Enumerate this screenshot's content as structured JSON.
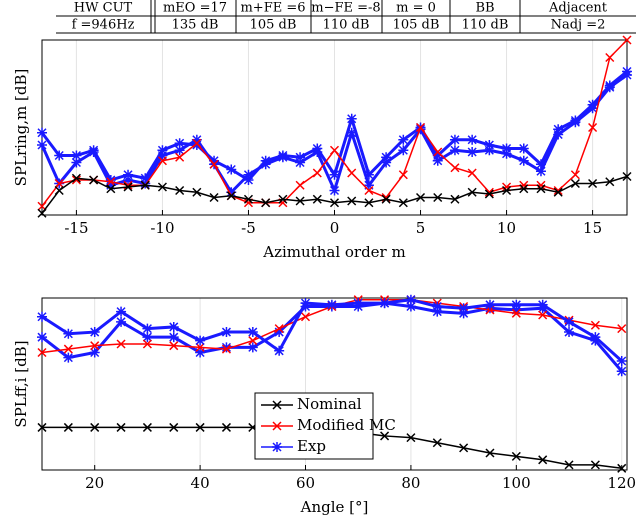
{
  "table": {
    "rows": [
      [
        "HW  CUT",
        "mEO =17",
        "m+FE =6",
        "m−FE =-8",
        "m = 0",
        "BB",
        "Adjacent"
      ],
      [
        "f =946Hz",
        "135 dB",
        "105 dB",
        "110 dB",
        "105 dB",
        "110 dB",
        "Nadj =2"
      ]
    ]
  },
  "chart_data": [
    {
      "type": "line",
      "xlabel": "Azimuthal order m",
      "ylabel": "SPLring,m [dB]",
      "xlim": [
        -17,
        17
      ],
      "ylim": [
        0,
        10
      ],
      "xticks": [
        -15,
        -10,
        -5,
        0,
        5,
        10,
        15
      ],
      "grid": true,
      "x": [
        -17,
        -16,
        -15,
        -14,
        -13,
        -12,
        -11,
        -10,
        -9,
        -8,
        -7,
        -6,
        -5,
        -4,
        -3,
        -2,
        -1,
        0,
        1,
        2,
        3,
        4,
        5,
        6,
        7,
        8,
        9,
        10,
        11,
        12,
        13,
        14,
        15,
        16,
        17
      ],
      "series": [
        {
          "color": "#1a1aff",
          "marker": "star",
          "values": [
            4.7,
            3.4,
            3.4,
            3.7,
            2.0,
            2.3,
            2.1,
            3.7,
            4.1,
            4.0,
            3.1,
            2.6,
            2.0,
            3.1,
            3.4,
            3.3,
            3.8,
            2.3,
            5.5,
            2.3,
            3.3,
            4.3,
            5.0,
            3.4,
            4.3,
            4.3,
            4.0,
            3.8,
            3.8,
            2.9,
            4.9,
            5.4,
            6.3,
            7.4,
            8.2
          ]
        },
        {
          "color": "#1a1aff",
          "marker": "star",
          "values": [
            4.0,
            1.8,
            3.0,
            3.6,
            1.7,
            2.0,
            1.8,
            3.4,
            3.7,
            4.3,
            2.9,
            1.3,
            2.3,
            2.9,
            3.3,
            3.0,
            3.6,
            1.4,
            4.7,
            1.7,
            3.0,
            3.7,
            4.9,
            3.1,
            3.7,
            3.6,
            3.7,
            3.5,
            3.1,
            2.5,
            4.6,
            5.3,
            6.1,
            7.3,
            8.0
          ]
        },
        {
          "color": "#ff0000",
          "marker": "x",
          "values": [
            0.5,
            1.8,
            2.0,
            2.0,
            1.9,
            1.7,
            1.7,
            3.1,
            3.3,
            4.1,
            2.9,
            1.1,
            0.7,
            0.7,
            0.7,
            1.7,
            2.4,
            3.7,
            2.4,
            1.4,
            1.0,
            2.3,
            5.0,
            3.6,
            2.7,
            2.4,
            1.3,
            1.6,
            1.7,
            1.7,
            1.4,
            2.3,
            5.0,
            9.0,
            10.0
          ]
        },
        {
          "color": "#000000",
          "marker": "x",
          "values": [
            0.1,
            1.4,
            2.1,
            2.0,
            1.5,
            1.6,
            1.7,
            1.6,
            1.4,
            1.3,
            1.0,
            1.1,
            0.9,
            0.7,
            0.9,
            0.8,
            0.9,
            0.7,
            0.8,
            0.7,
            0.9,
            0.7,
            1.0,
            1.0,
            0.9,
            1.3,
            1.2,
            1.4,
            1.5,
            1.5,
            1.3,
            1.8,
            1.8,
            1.9,
            2.2
          ]
        }
      ]
    },
    {
      "type": "line",
      "xlabel": "Angle [°]",
      "ylabel": "SPLff,i [dB]",
      "xlim": [
        10,
        121
      ],
      "ylim": [
        0,
        10.1
      ],
      "xticks": [
        20,
        40,
        60,
        80,
        100,
        120
      ],
      "grid": true,
      "x": [
        10,
        15,
        20,
        25,
        30,
        35,
        40,
        45,
        50,
        55,
        60,
        65,
        70,
        75,
        80,
        85,
        90,
        95,
        100,
        105,
        110,
        115,
        120
      ],
      "series": [
        {
          "color": "#1a1aff",
          "marker": "star",
          "values": [
            7.8,
            6.6,
            6.9,
            8.7,
            7.8,
            7.8,
            6.9,
            7.2,
            7.2,
            8.1,
            9.6,
            9.6,
            9.6,
            9.8,
            9.6,
            9.3,
            9.2,
            9.5,
            9.4,
            9.5,
            8.1,
            7.6,
            5.8
          ]
        },
        {
          "name": "Nominal",
          "color": "#000000",
          "marker": "x",
          "values": [
            2.5,
            2.5,
            2.5,
            2.5,
            2.5,
            2.5,
            2.5,
            2.5,
            2.5,
            2.5,
            2.3,
            2.3,
            2.2,
            2.0,
            1.9,
            1.6,
            1.3,
            1.0,
            0.8,
            0.6,
            0.3,
            0.3,
            0.1
          ]
        },
        {
          "name": "Modified MC",
          "color": "#ff0000",
          "marker": "x",
          "values": [
            6.9,
            7.1,
            7.3,
            7.4,
            7.4,
            7.3,
            7.2,
            7.1,
            7.6,
            8.3,
            9.0,
            9.6,
            10.0,
            10.0,
            10.0,
            9.8,
            9.6,
            9.4,
            9.2,
            9.1,
            8.8,
            8.5,
            8.3
          ]
        },
        {
          "name": "Exp",
          "color": "#1a1aff",
          "marker": "star",
          "values": [
            9.0,
            8.0,
            8.1,
            9.3,
            8.3,
            8.4,
            7.6,
            8.1,
            8.1,
            7.0,
            9.8,
            9.7,
            9.8,
            9.8,
            10.0,
            9.6,
            9.5,
            9.7,
            9.7,
            9.7,
            8.7,
            7.8,
            6.4
          ]
        }
      ]
    }
  ]
}
